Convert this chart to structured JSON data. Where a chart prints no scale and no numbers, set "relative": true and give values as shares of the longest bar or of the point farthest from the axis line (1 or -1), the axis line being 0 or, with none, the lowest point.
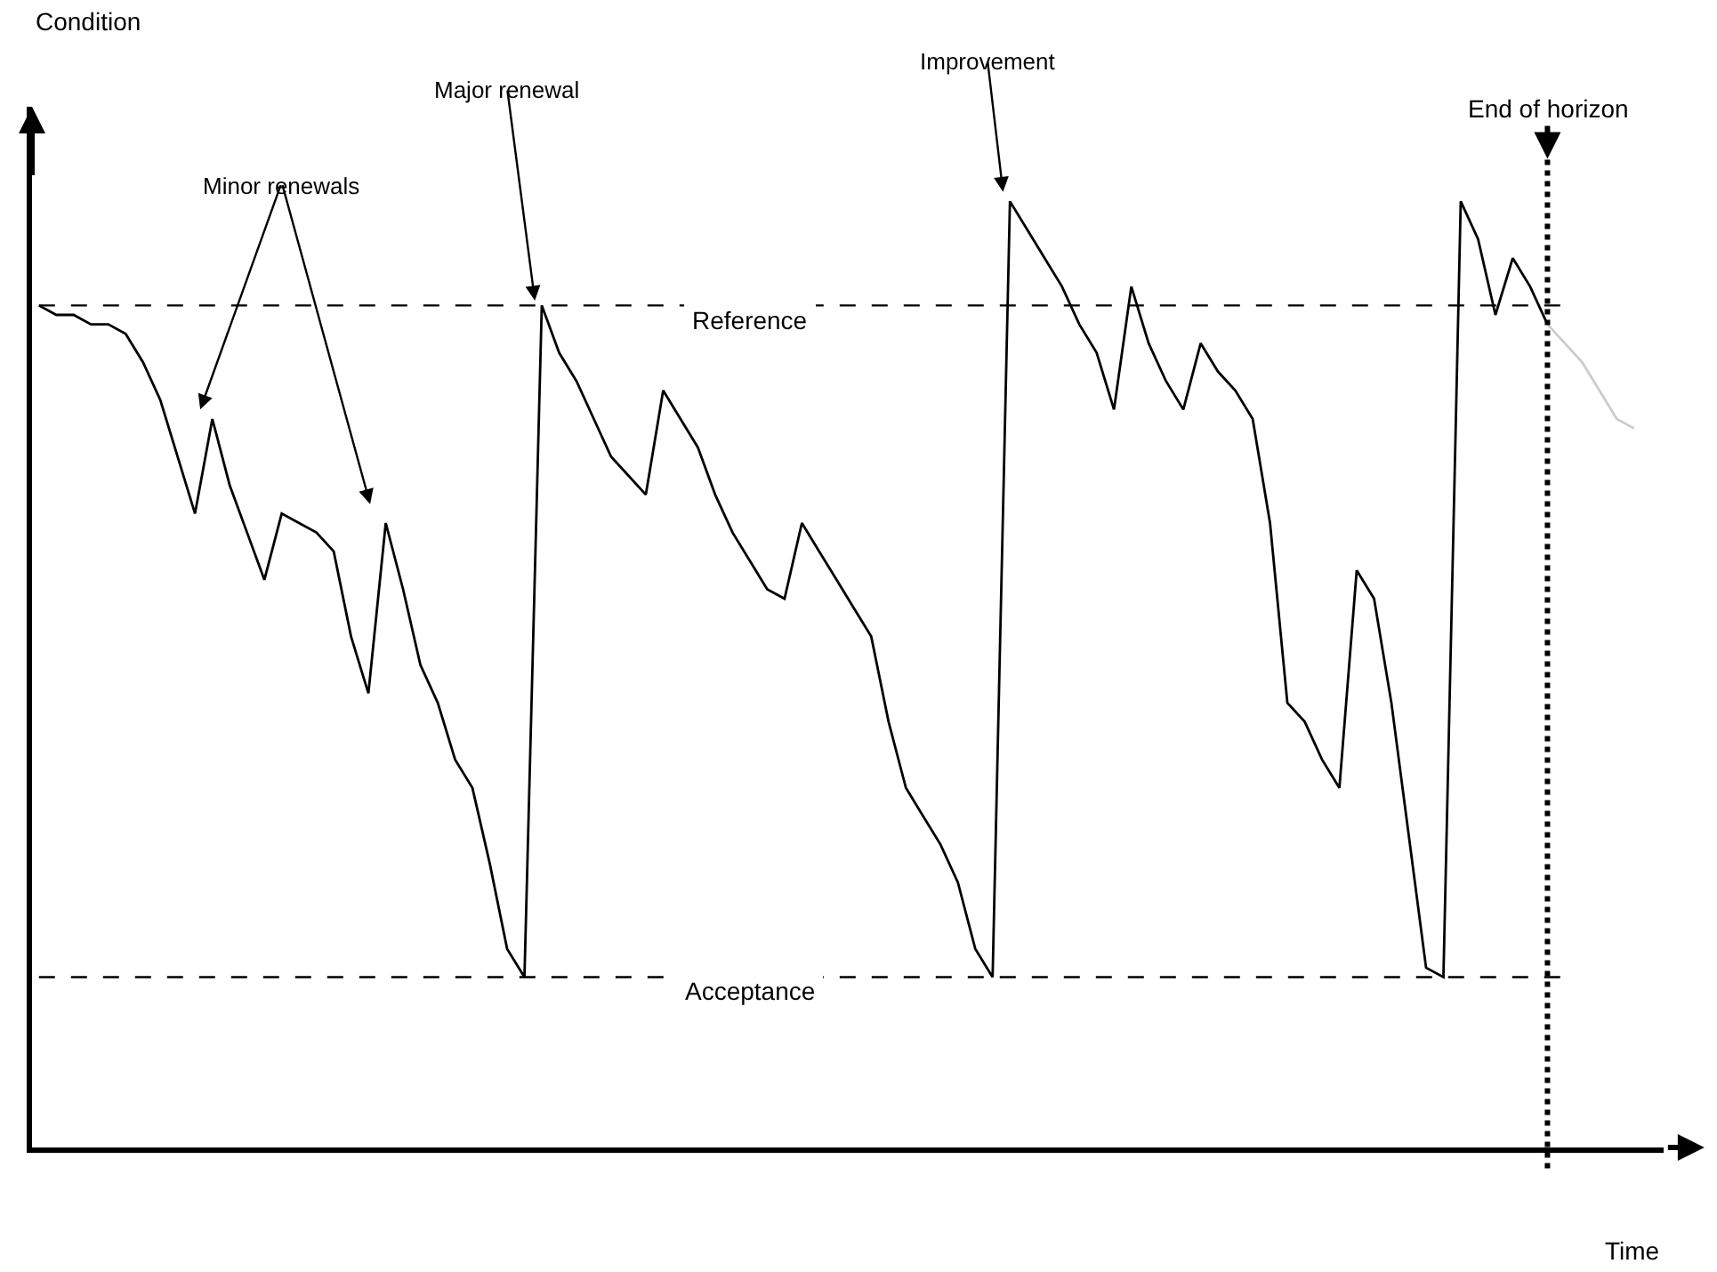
{
  "chart_data": {
    "type": "line",
    "relative": true,
    "xlabel": "Time",
    "categories": [
      null,
      null,
      null,
      null,
      null,
      null,
      null,
      null,
      null,
      null,
      null,
      null,
      null,
      null,
      null,
      null,
      null,
      null,
      null,
      null,
      null,
      null,
      null,
      null,
      null,
      null,
      null,
      null,
      null,
      null,
      null,
      null,
      null,
      null,
      null,
      null,
      null,
      null,
      null,
      null,
      null,
      null,
      null,
      null,
      null,
      null,
      null,
      null,
      null,
      null,
      null,
      null,
      null,
      null,
      null,
      null,
      null,
      null,
      null,
      null,
      null,
      null,
      null,
      null,
      null,
      null,
      null,
      null,
      null,
      null,
      null,
      null,
      null,
      null,
      null,
      null,
      null,
      null,
      null,
      null,
      null,
      null,
      null,
      null,
      null,
      null,
      null,
      null,
      null,
      null,
      null,
      null,
      null
    ],
    "series": [
      {
        "color": "#000000",
        "values": [
          0.89,
          0.88,
          0.88,
          0.87,
          0.87,
          0.86,
          0.83,
          0.79,
          0.73,
          0.67,
          0.77,
          0.7,
          0.65,
          0.6,
          0.67,
          0.66,
          0.65,
          0.63,
          0.54,
          0.48,
          0.66,
          0.59,
          0.51,
          0.47,
          0.41,
          0.38,
          0.3,
          0.21,
          0.18,
          0.89,
          0.84,
          0.81,
          0.77,
          0.73,
          0.71,
          0.69,
          0.8,
          0.77,
          0.74,
          0.69,
          0.65,
          0.62,
          0.59,
          0.58,
          0.66,
          0.63,
          0.6,
          0.57,
          0.54,
          0.45,
          0.38,
          0.35,
          0.32,
          0.28,
          0.21,
          0.18,
          1.0,
          0.97,
          0.94,
          0.91,
          0.87,
          0.84,
          0.78,
          0.91,
          0.85,
          0.81,
          0.78,
          0.85,
          0.82,
          0.8,
          0.77,
          0.66,
          0.47,
          0.45,
          0.41,
          0.38,
          0.61,
          0.58,
          0.47,
          0.33,
          0.19,
          0.18,
          1.0,
          0.96,
          0.88,
          0.94,
          0.91,
          0.87,
          null,
          null,
          null,
          null,
          null
        ]
      },
      {
        "color": "#cccccc",
        "values": [
          null,
          null,
          null,
          null,
          null,
          null,
          null,
          null,
          null,
          null,
          null,
          null,
          null,
          null,
          null,
          null,
          null,
          null,
          null,
          null,
          null,
          null,
          null,
          null,
          null,
          null,
          null,
          null,
          null,
          null,
          null,
          null,
          null,
          null,
          null,
          null,
          null,
          null,
          null,
          null,
          null,
          null,
          null,
          null,
          null,
          null,
          null,
          null,
          null,
          null,
          null,
          null,
          null,
          null,
          null,
          null,
          null,
          null,
          null,
          null,
          null,
          null,
          null,
          null,
          null,
          null,
          null,
          null,
          null,
          null,
          null,
          null,
          null,
          null,
          null,
          null,
          null,
          null,
          null,
          null,
          null,
          null,
          null,
          null,
          null,
          null,
          null,
          0.87,
          0.85,
          0.83,
          0.8,
          0.77,
          0.76
        ]
      }
    ],
    "ref_lines": [
      {
        "axis": "y",
        "value": 0.89,
        "label": "Reference",
        "line_style": "dashed"
      },
      {
        "axis": "y",
        "value": 0.18,
        "label": "Acceptance",
        "line_style": "dashed"
      }
    ],
    "annotations": [
      "Condition",
      "Minor renewals",
      "Major renewal",
      "Improvement",
      "End of horizon"
    ]
  }
}
